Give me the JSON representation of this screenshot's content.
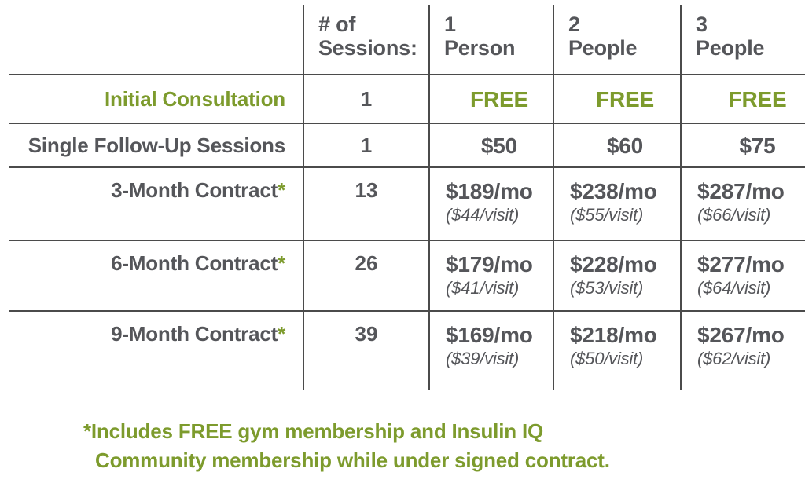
{
  "colors": {
    "green": "#7D9B2D",
    "dark": "#55565A",
    "line": "#4B4B4B",
    "bg": "#FFFFFF"
  },
  "table": {
    "header": {
      "empty": "",
      "sessions": "# of\nSessions:",
      "p1": "1\nPerson",
      "p2": "2\nPeople",
      "p3": "3\nPeople"
    },
    "rows": [
      {
        "label": "Initial Consultation",
        "asterisk": "",
        "sessions": "1",
        "prices": [
          {
            "main": "FREE",
            "sub": ""
          },
          {
            "main": "FREE",
            "sub": ""
          },
          {
            "main": "FREE",
            "sub": ""
          }
        ]
      },
      {
        "label": "Single Follow-Up Sessions",
        "asterisk": "",
        "sessions": "1",
        "prices": [
          {
            "main": "$50",
            "sub": ""
          },
          {
            "main": "$60",
            "sub": ""
          },
          {
            "main": "$75",
            "sub": ""
          }
        ]
      },
      {
        "label": "3-Month Contract",
        "asterisk": "*",
        "sessions": "13",
        "prices": [
          {
            "main": "$189/mo",
            "sub": "($44/visit)"
          },
          {
            "main": "$238/mo",
            "sub": "($55/visit)"
          },
          {
            "main": "$287/mo",
            "sub": "($66/visit)"
          }
        ]
      },
      {
        "label": "6-Month Contract",
        "asterisk": "*",
        "sessions": "26",
        "prices": [
          {
            "main": "$179/mo",
            "sub": "($41/visit)"
          },
          {
            "main": "$228/mo",
            "sub": "($53/visit)"
          },
          {
            "main": "$277/mo",
            "sub": "($64/visit)"
          }
        ]
      },
      {
        "label": "9-Month Contract",
        "asterisk": "*",
        "sessions": "39",
        "prices": [
          {
            "main": "$169/mo",
            "sub": "($39/visit)"
          },
          {
            "main": "$218/mo",
            "sub": "($50/visit)"
          },
          {
            "main": "$267/mo",
            "sub": "($62/visit)"
          }
        ]
      }
    ]
  },
  "footnote": {
    "line1": "*Includes FREE gym membership and Insulin IQ",
    "line2": "Community membership while under signed contract."
  },
  "chart_data": {
    "type": "table",
    "columns": [
      "",
      "# of Sessions:",
      "1 Person",
      "2 People",
      "3 People"
    ],
    "rows": [
      [
        "Initial Consultation",
        "1",
        "FREE",
        "FREE",
        "FREE"
      ],
      [
        "Single Follow-Up Sessions",
        "1",
        "$50",
        "$60",
        "$75"
      ],
      [
        "3-Month Contract*",
        "13",
        "$189/mo ($44/visit)",
        "$238/mo ($55/visit)",
        "$287/mo ($66/visit)"
      ],
      [
        "6-Month Contract*",
        "26",
        "$179/mo ($41/visit)",
        "$228/mo ($53/visit)",
        "$277/mo ($64/visit)"
      ],
      [
        "9-Month Contract*",
        "39",
        "$169/mo ($39/visit)",
        "$218/mo ($50/visit)",
        "$267/mo ($62/visit)"
      ]
    ],
    "footnote": "*Includes FREE gym membership and Insulin IQ Community membership while under signed contract.",
    "accent_color": "#7D9B2D",
    "text_color": "#55565A"
  }
}
